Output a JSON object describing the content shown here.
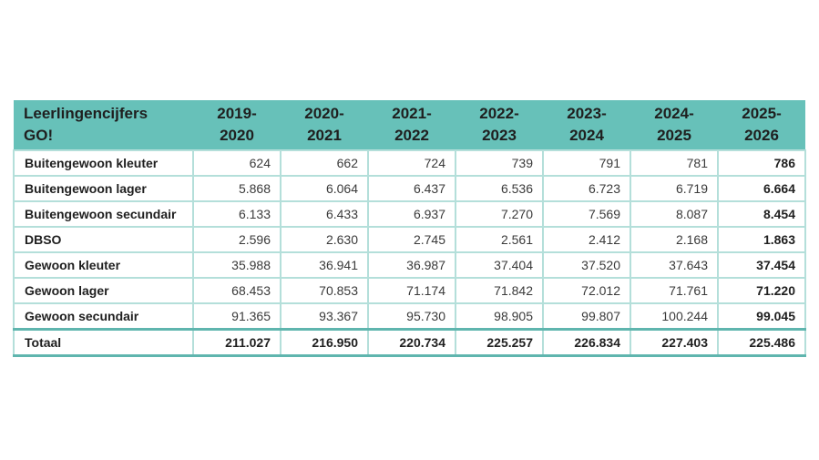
{
  "table": {
    "title_line1": "Leerlingencijfers",
    "title_line2": "GO!",
    "columns": [
      {
        "line1": "2019-",
        "line2": "2020"
      },
      {
        "line1": "2020-",
        "line2": "2021"
      },
      {
        "line1": "2021-",
        "line2": "2022"
      },
      {
        "line1": "2022-",
        "line2": "2023"
      },
      {
        "line1": "2023-",
        "line2": "2024"
      },
      {
        "line1": "2024-",
        "line2": "2025"
      },
      {
        "line1": "2025-",
        "line2": "2026"
      }
    ],
    "rows": [
      {
        "label": "Buitengewoon kleuter",
        "values": [
          "624",
          "662",
          "724",
          "739",
          "791",
          "781",
          "786"
        ]
      },
      {
        "label": "Buitengewoon lager",
        "values": [
          "5.868",
          "6.064",
          "6.437",
          "6.536",
          "6.723",
          "6.719",
          "6.664"
        ]
      },
      {
        "label": "Buitengewoon secundair",
        "values": [
          "6.133",
          "6.433",
          "6.937",
          "7.270",
          "7.569",
          "8.087",
          "8.454"
        ]
      },
      {
        "label": "DBSO",
        "values": [
          "2.596",
          "2.630",
          "2.745",
          "2.561",
          "2.412",
          "2.168",
          "1.863"
        ]
      },
      {
        "label": "Gewoon kleuter",
        "values": [
          "35.988",
          "36.941",
          "36.987",
          "37.404",
          "37.520",
          "37.643",
          "37.454"
        ]
      },
      {
        "label": "Gewoon lager",
        "values": [
          "68.453",
          "70.853",
          "71.174",
          "71.842",
          "72.012",
          "71.761",
          "71.220"
        ]
      },
      {
        "label": "Gewoon secundair",
        "values": [
          "91.365",
          "93.367",
          "95.730",
          "98.905",
          "99.807",
          "100.244",
          "99.045"
        ]
      }
    ],
    "total": {
      "label": "Totaal",
      "values": [
        "211.027",
        "216.950",
        "220.734",
        "225.257",
        "226.834",
        "227.403",
        "225.486"
      ]
    }
  },
  "colors": {
    "header_bg": "#67c1b9",
    "border_light": "#b4dfda",
    "border_dark": "#5fb5ae"
  }
}
